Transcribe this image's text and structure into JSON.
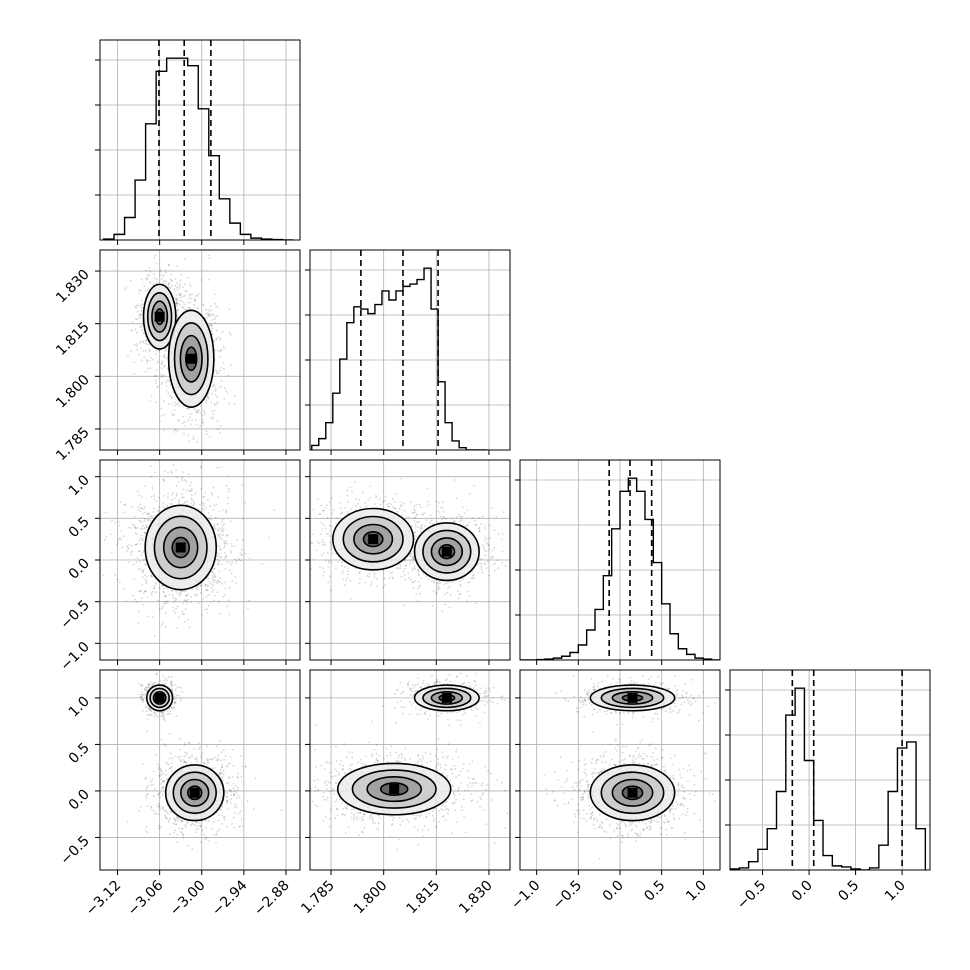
{
  "chart_data": {
    "type": "corner",
    "parameters": [
      {
        "ticks": [
          -3.12,
          -3.06,
          -3.0,
          -2.94,
          -2.88
        ],
        "tick_labels": [
          "−3.12",
          "−3.06",
          "−3.00",
          "−2.94",
          "−2.88"
        ],
        "lim": [
          -3.145,
          -2.86
        ]
      },
      {
        "ticks": [
          1.785,
          1.8,
          1.815,
          1.83
        ],
        "tick_labels": [
          "1.785",
          "1.800",
          "1.815",
          "1.830"
        ],
        "lim": [
          1.779,
          1.836
        ]
      },
      {
        "ticks": [
          -1.0,
          -0.5,
          0.0,
          0.5,
          1.0
        ],
        "tick_labels": [
          "−1.0",
          "−0.5",
          "0.0",
          "0.5",
          "1.0"
        ],
        "lim": [
          -1.2,
          1.2
        ]
      },
      {
        "ticks": [
          -0.5,
          0.0,
          0.5,
          1.0
        ],
        "tick_labels": [
          "−0.5",
          "0.0",
          "0.5",
          "1.0"
        ],
        "lim": [
          -0.85,
          1.3
        ]
      }
    ],
    "grid": true,
    "histograms": [
      {
        "bins": [
          -3.14,
          -3.125,
          -3.11,
          -3.095,
          -3.08,
          -3.065,
          -3.05,
          -3.035,
          -3.02,
          -3.005,
          -2.99,
          -2.975,
          -2.96,
          -2.945,
          -2.93,
          -2.915,
          -2.9,
          -2.885,
          -2.87
        ],
        "counts": [
          0.005,
          0.03,
          0.12,
          0.32,
          0.62,
          0.9,
          0.97,
          0.97,
          0.93,
          0.7,
          0.45,
          0.22,
          0.09,
          0.03,
          0.01,
          0.005,
          0.002,
          0
        ],
        "quantiles": [
          -3.061,
          -3.025,
          -2.987
        ]
      },
      {
        "bins": [
          1.7795,
          1.7815,
          1.7835,
          1.7855,
          1.7875,
          1.7895,
          1.7915,
          1.7935,
          1.7955,
          1.7975,
          1.7995,
          1.8015,
          1.8035,
          1.8055,
          1.8075,
          1.8095,
          1.8115,
          1.8135,
          1.8155,
          1.8175,
          1.8195,
          1.8215,
          1.8235,
          1.8255,
          1.8275,
          1.8295
        ],
        "counts": [
          0.02,
          0.05,
          0.12,
          0.25,
          0.4,
          0.56,
          0.63,
          0.62,
          0.6,
          0.64,
          0.7,
          0.66,
          0.7,
          0.72,
          0.73,
          0.75,
          0.8,
          0.62,
          0.3,
          0.12,
          0.04,
          0.01,
          0,
          0,
          0
        ],
        "quantiles": [
          1.7935,
          1.8055,
          1.8155
        ]
      },
      {
        "bins": [
          -1.2,
          -1.1,
          -1.0,
          -0.9,
          -0.8,
          -0.7,
          -0.6,
          -0.5,
          -0.4,
          -0.3,
          -0.2,
          -0.1,
          0.0,
          0.1,
          0.2,
          0.3,
          0.4,
          0.5,
          0.6,
          0.7,
          0.8,
          0.9,
          1.0,
          1.1,
          1.2
        ],
        "counts": [
          0,
          0,
          0.002,
          0.005,
          0.01,
          0.02,
          0.04,
          0.08,
          0.16,
          0.27,
          0.45,
          0.7,
          0.9,
          0.97,
          0.9,
          0.75,
          0.52,
          0.3,
          0.14,
          0.06,
          0.03,
          0.01,
          0.005,
          0
        ],
        "quantiles": [
          -0.13,
          0.12,
          0.38
        ]
      },
      {
        "bins": [
          -0.85,
          -0.75,
          -0.65,
          -0.55,
          -0.45,
          -0.35,
          -0.25,
          -0.15,
          -0.05,
          0.05,
          0.15,
          0.25,
          0.35,
          0.45,
          0.55,
          0.65,
          0.75,
          0.85,
          0.95,
          1.05,
          1.15,
          1.25
        ],
        "counts": [
          0.005,
          0.01,
          0.04,
          0.1,
          0.2,
          0.38,
          0.75,
          0.88,
          0.53,
          0.24,
          0.07,
          0.02,
          0.015,
          0.005,
          0,
          0.01,
          0.12,
          0.38,
          0.59,
          0.62,
          0.2
        ],
        "quantiles": [
          -0.18,
          0.05,
          1.0
        ]
      }
    ],
    "modes": {
      "p0p1": [
        {
          "center": [
            -3.06,
            1.817
          ],
          "sd": [
            0.01,
            0.004
          ],
          "w": 0.4
        },
        {
          "center": [
            -3.015,
            1.805
          ],
          "sd": [
            0.014,
            0.006
          ],
          "w": 0.6
        }
      ],
      "p0p2": [
        {
          "center": [
            -3.03,
            0.15
          ],
          "sd": [
            0.022,
            0.22
          ],
          "w": 1
        }
      ],
      "p1p2": [
        {
          "center": [
            1.797,
            0.25
          ],
          "sd": [
            0.005,
            0.16
          ],
          "w": 0.45
        },
        {
          "center": [
            1.818,
            0.1
          ],
          "sd": [
            0.004,
            0.15
          ],
          "w": 0.55
        }
      ],
      "p0p3": [
        {
          "center": [
            -3.06,
            1.0
          ],
          "sd": [
            0.008,
            0.06
          ],
          "w": 0.3
        },
        {
          "center": [
            -3.01,
            -0.02
          ],
          "sd": [
            0.018,
            0.13
          ],
          "w": 0.7
        }
      ],
      "p1p3": [
        {
          "center": [
            1.818,
            1.0
          ],
          "sd": [
            0.004,
            0.06
          ],
          "w": 0.3
        },
        {
          "center": [
            1.803,
            0.02
          ],
          "sd": [
            0.007,
            0.12
          ],
          "w": 0.7
        }
      ],
      "p2p3": [
        {
          "center": [
            0.15,
            1.0
          ],
          "sd": [
            0.22,
            0.06
          ],
          "w": 0.3
        },
        {
          "center": [
            0.15,
            -0.02
          ],
          "sd": [
            0.22,
            0.13
          ],
          "w": 0.7
        }
      ]
    }
  }
}
